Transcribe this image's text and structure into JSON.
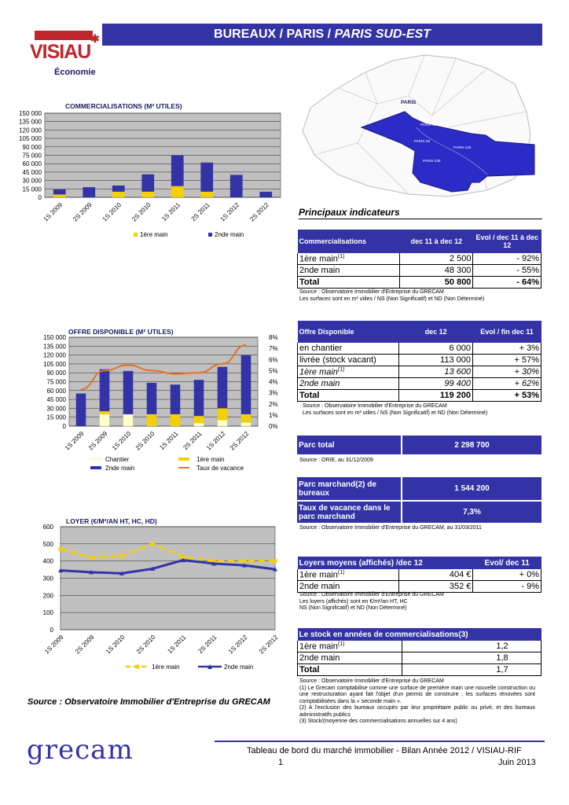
{
  "header": {
    "title_main": "BUREAUX / PARIS / ",
    "title_sub": "PARIS SUD-EST",
    "logo_text": "VISIAU",
    "logo_sub": "Économie"
  },
  "map": {
    "city_label": "PARIS",
    "district_labels": [
      "PARIS-4E",
      "PARIS-1B",
      "PARIS-12E",
      "PARIS-13E"
    ]
  },
  "charts": {
    "commercialisations": {
      "title": "COMMERCIALISATIONS (M² UTILES)",
      "yticks": [
        "150 000",
        "135 000",
        "120 000",
        "105 000",
        "90 000",
        "75 000",
        "60 000",
        "45 000",
        "30 000",
        "15 000",
        "0"
      ]
    },
    "offre": {
      "title": "OFFRE DISPONIBLE (M² UTILES)",
      "yticks": [
        "150 000",
        "135 000",
        "120 000",
        "105 000",
        "90 000",
        "75 000",
        "60 000",
        "45 000",
        "30 000",
        "15 000",
        "0"
      ],
      "y2ticks": [
        "8%",
        "7%",
        "6%",
        "5%",
        "4%",
        "3%",
        "2%",
        "1%",
        "0%"
      ]
    },
    "loyer": {
      "title": "LOYER (€/M²/AN HT, HC, HD)",
      "yticks": [
        "600",
        "500",
        "400",
        "300",
        "200",
        "100",
        "0"
      ]
    }
  },
  "chart_data": [
    {
      "type": "bar",
      "title": "COMMERCIALISATIONS (M² UTILES)",
      "categories": [
        "1S 2009",
        "2S 2009",
        "1S 2010",
        "2S 2010",
        "1S 2011",
        "2S 2011",
        "1S 2012",
        "2S 2012"
      ],
      "series": [
        {
          "name": "1ère main",
          "values": [
            5000,
            0,
            10000,
            10000,
            20000,
            10000,
            0,
            0
          ]
        },
        {
          "name": "2nde main",
          "values": [
            9000,
            18000,
            11000,
            31000,
            55000,
            52000,
            40000,
            10000
          ]
        }
      ],
      "ylim": [
        0,
        150000
      ],
      "stacked": true,
      "legend": "bottom"
    },
    {
      "type": "bar",
      "title": "OFFRE DISPONIBLE (M² UTILES)",
      "categories": [
        "1S 2009",
        "2S 2009",
        "1S 2010",
        "2S 2010",
        "1S 2011",
        "2S 2011",
        "1S 2012",
        "2S 2012"
      ],
      "series": [
        {
          "name": "Chantier",
          "values": [
            0,
            20000,
            20000,
            0,
            0,
            5000,
            10000,
            6000
          ]
        },
        {
          "name": "1ère main",
          "values": [
            0,
            5000,
            0,
            20000,
            20000,
            12000,
            20000,
            14000
          ]
        },
        {
          "name": "2nde main",
          "values": [
            55000,
            71000,
            73000,
            53000,
            50000,
            61000,
            70000,
            100000
          ]
        },
        {
          "name": "Taux de vacance",
          "values": [
            3.3,
            5.0,
            5.5,
            5.0,
            4.7,
            4.8,
            5.6,
            7.3
          ],
          "axis": "right"
        }
      ],
      "ylim": [
        0,
        150000
      ],
      "y2lim": [
        0,
        8
      ],
      "stacked": true,
      "legend": "bottom"
    },
    {
      "type": "line",
      "title": "LOYER (€/M²/AN HT, HC, HD)",
      "categories": [
        "1S 2009",
        "2S 2009",
        "1S 2010",
        "2S 2010",
        "1S 2011",
        "2S 2011",
        "1S 2012",
        "2S 2012"
      ],
      "series": [
        {
          "name": "1ère main",
          "values": [
            470,
            420,
            430,
            500,
            425,
            400,
            400,
            400
          ]
        },
        {
          "name": "2nde main",
          "values": [
            345,
            335,
            328,
            355,
            405,
            385,
            375,
            352
          ]
        }
      ],
      "ylim": [
        0,
        600
      ],
      "legend": "bottom"
    }
  ],
  "indicators_title": "Principaux indicateurs",
  "table_comm": {
    "h1": "Commercialisations",
    "h2": "dec 11 à dec 12",
    "h3": "Evol / dec 11 à dec 12",
    "rows": [
      {
        "label": "1ère main",
        "sup": "(1)",
        "v": "2 500",
        "e": "- 92%"
      },
      {
        "label": "2nde main",
        "sup": "",
        "v": "48 300",
        "e": "- 55%"
      },
      {
        "label": "Total",
        "sup": "",
        "v": "50 800",
        "e": "- 64%"
      }
    ],
    "source1": "Source : Observatoire Immobilier d'Entreprise du GRECAM",
    "source2": "Les surfaces sont en m² utiles / NS (Non Significatif) et ND (Non Déterminé)"
  },
  "table_offre": {
    "h1": "Offre Disponible",
    "h2": "dec 12",
    "h3": "Evol / fin dec 11",
    "rows": [
      {
        "label": "en chantier",
        "sup": "",
        "v": "6 000",
        "e": "+ 3%"
      },
      {
        "label": "livrée (stock vacant)",
        "sup": "",
        "v": "113 000",
        "e": "+ 57%"
      },
      {
        "label": "1ère main",
        "sup": "(1)",
        "v": "13 600",
        "e": "+ 30%"
      },
      {
        "label": "2nde main",
        "sup": "",
        "v": "99 400",
        "e": "+ 62%"
      },
      {
        "label": "Total",
        "sup": "",
        "v": "119 200",
        "e": "+ 53%"
      }
    ],
    "source1": "Source : Observatoire Immobilier d'Entreprise du GRECAM",
    "source2": "Les surfaces sont en m² utiles / NS (Non Significatif) et ND (Non Déterminé)"
  },
  "parc_total": {
    "label": "Parc total",
    "value": "2 298 700",
    "source": "Source : ORIE, au 31/12/2009"
  },
  "parc_marchand": {
    "label1": "Parc marchand(2) de bureaux",
    "value1": "1 544 200",
    "label2": "Taux de vacance dans le parc marchand",
    "value2": "7,3%",
    "source": "Source : Observatoire Immobilier d'Entreprise du GRECAM, au 31/03/2011"
  },
  "table_loyers": {
    "h1": "Loyers moyens (affichés) /dec 12",
    "h3": "Evol/  dec 11",
    "rows": [
      {
        "label": "1ère main",
        "sup": "(1)",
        "v": "404 €",
        "e": "+ 0%"
      },
      {
        "label": "2nde  main",
        "sup": "",
        "v": "352 €",
        "e": "- 9%"
      }
    ],
    "source1": "Source : Observatoire Immobilier d'Entreprise du GRECAM",
    "source2": "Les loyers (affichés) sont en €/m²/an HT, HC",
    "source3": "NS (Non Significatif) et ND (Non Déterminé)"
  },
  "table_stock": {
    "h1": "Le stock en années de commercialisations(3)",
    "rows": [
      {
        "label": "1ère main",
        "sup": "(1)",
        "v": "1,2"
      },
      {
        "label": "2nde  main",
        "sup": "",
        "v": "1,8"
      },
      {
        "label": "Total",
        "sup": "",
        "v": "1,7"
      }
    ],
    "notes": [
      "Source : Observatoire Immobilier d'Entreprise du GRECAM",
      "(1) Le Grecam comptabilise comme une surface de première main une nouvelle construction ou une restructuration ayant fait l'objet d'un permis de construire ; les surfaces rénovées sont comptabilisées dans la « seconde main ».",
      "(2) A l'exclusion des bureaux occupés par leur propriétaire public ou privé, et des bureaux administratifs publics",
      "(3) Stock/(moyenne des commercialisations annuelles sur 4 ans)"
    ]
  },
  "left_source": "Source : Observatoire Immobilier d'Entreprise du GRECAM",
  "footer": {
    "brand": "grecam",
    "line1": "Tableau de bord du marché immobilier - Bilan Année 2012 / VISIAU-RIF",
    "page": "1",
    "date": "Juin 2013"
  }
}
